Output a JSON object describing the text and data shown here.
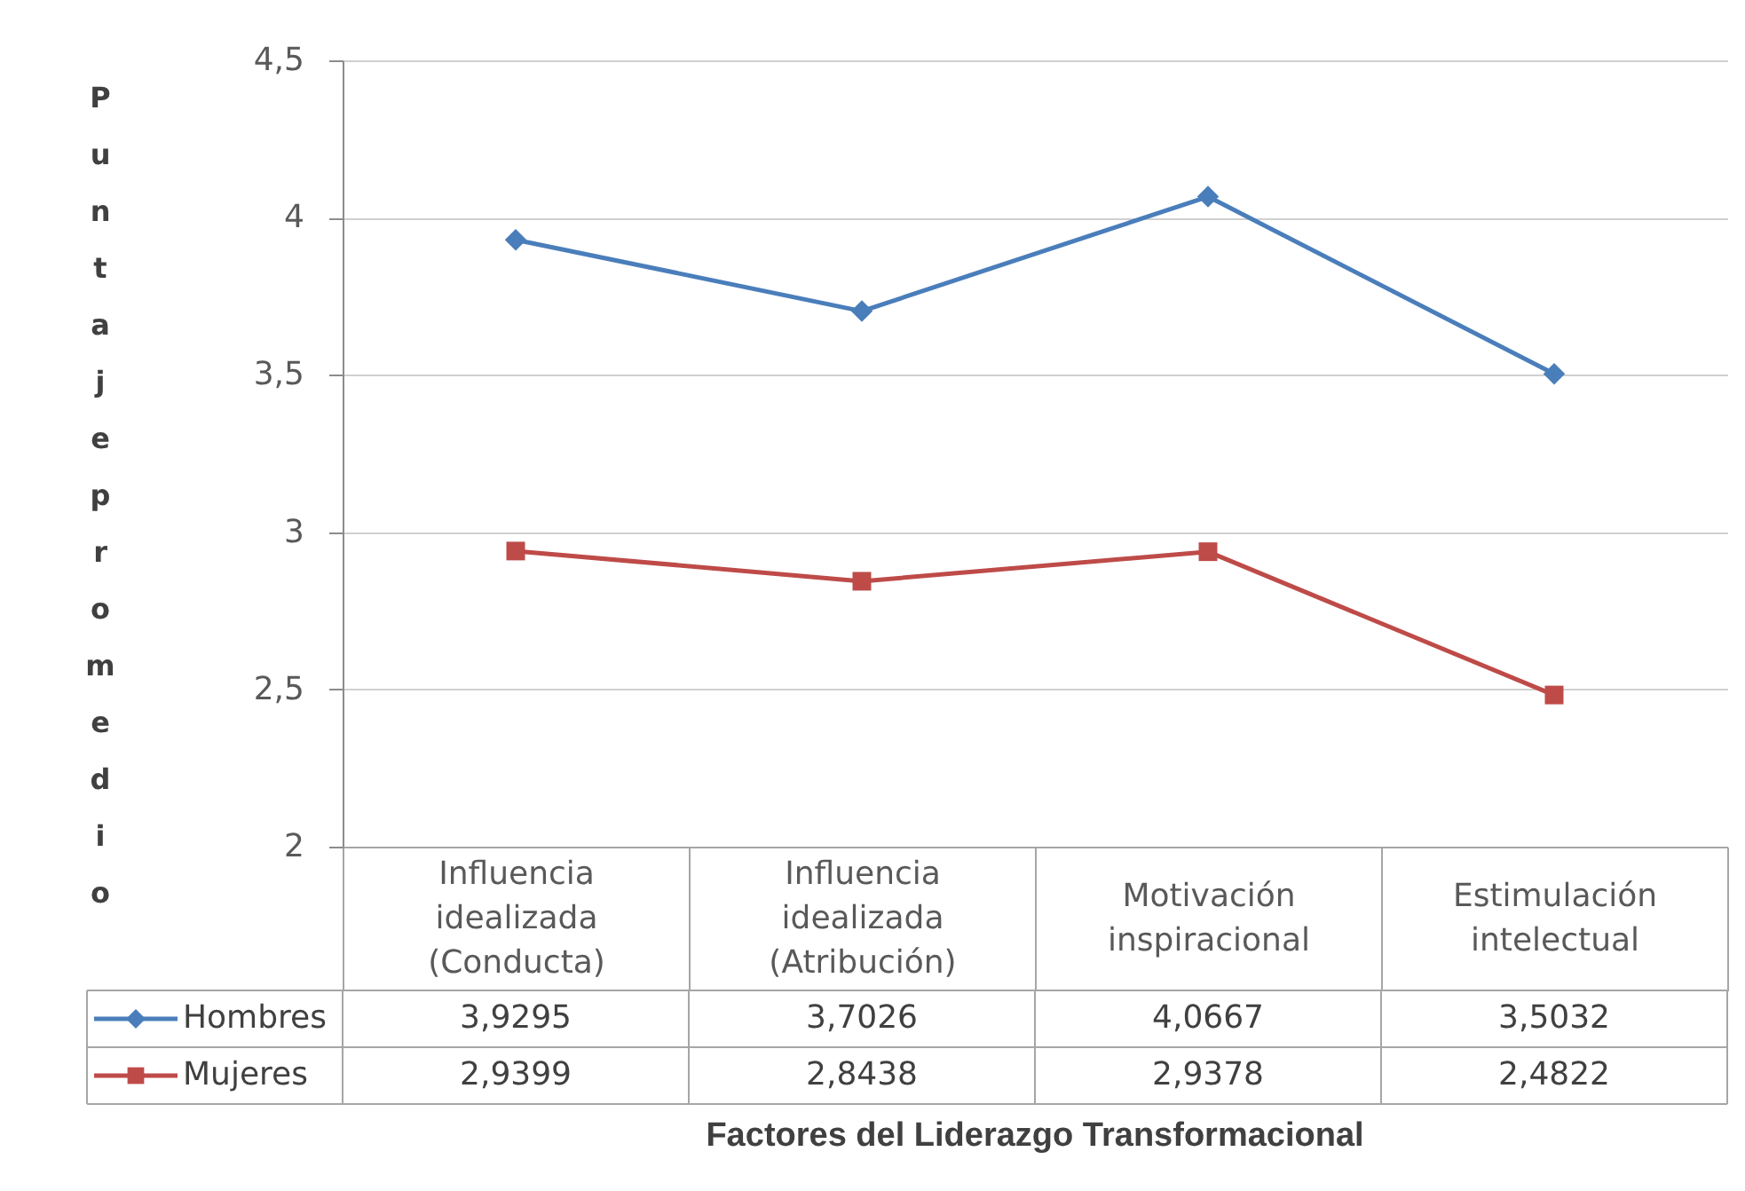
{
  "chart_data": {
    "type": "line",
    "xlabel": "Factores del Liderazgo Transformacional",
    "ylabel": "Puntaje promedio",
    "categories": [
      "Influencia idealizada (Conducta)",
      "Influencia idealizada (Atribución)",
      "Motivación inspiracional",
      "Estimulación intelectual"
    ],
    "series": [
      {
        "name": "Hombres",
        "color": "#4a7ebb",
        "marker": "diamond",
        "values": [
          3.9295,
          3.7026,
          4.0667,
          3.5032
        ],
        "value_labels": [
          "3,9295",
          "3,7026",
          "4,0667",
          "3,5032"
        ]
      },
      {
        "name": "Mujeres",
        "color": "#be4b48",
        "marker": "square",
        "values": [
          2.9399,
          2.8438,
          2.9378,
          2.4822
        ],
        "value_labels": [
          "2,9399",
          "2,8438",
          "2,9378",
          "2,4822"
        ]
      }
    ],
    "ylim": [
      2,
      4.5
    ],
    "yticks": [
      2,
      {
        "value": 2.5,
        "label": "2,5"
      },
      3,
      {
        "value": 3.5,
        "label": "3,5"
      },
      4,
      {
        "value": 4.5,
        "label": "4,5"
      }
    ],
    "grid": "y",
    "legend": "bottom left",
    "line_style": "solid"
  }
}
